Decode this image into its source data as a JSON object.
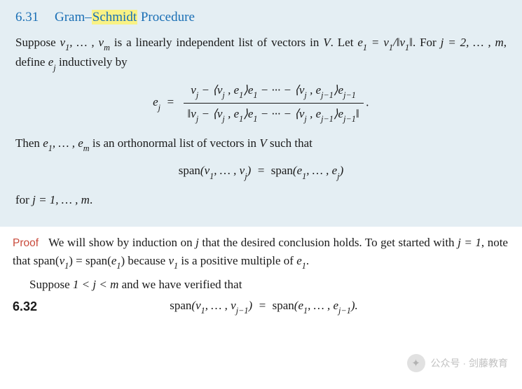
{
  "theorem": {
    "number": "6.31",
    "title_pre": "Gram–",
    "title_hl": "Schmidt",
    "title_post": " Procedure",
    "para1_a": "Suppose ",
    "para1_b": " is a linearly independent list of vectors in ",
    "para1_c": ".  Let ",
    "para1_d": ". For ",
    "para1_e": ", define ",
    "para1_f": " inductively by",
    "list_v": "v₁, … , vₘ",
    "space_V": "V",
    "e1_def": "e₁ = v₁ / ‖v₁‖",
    "j_range": "j = 2, … , m",
    "ej_sym": "eⱼ",
    "formula_lhs": "eⱼ  =  ",
    "formula_num": "vⱼ − ⟨vⱼ , e₁⟩e₁ − ··· − ⟨vⱼ , eⱼ₋₁⟩eⱼ₋₁",
    "formula_den": "‖vⱼ − ⟨vⱼ , e₁⟩e₁ − ··· − ⟨vⱼ , eⱼ₋₁⟩eⱼ₋₁‖",
    "formula_end": ".",
    "then_a": "Then ",
    "then_list": "e₁, … , eₘ",
    "then_b": " is an orthonormal list of vectors in ",
    "then_c": " such that",
    "span_eq": "span(v₁, … , vⱼ)  =  span(e₁, … , eⱼ)",
    "for_a": "for ",
    "for_range": "j = 1, … , m",
    "for_end": "."
  },
  "proof": {
    "label": "Proof",
    "p1_a": "We will show by induction on ",
    "p1_j": "j",
    "p1_b": " that the desired conclusion holds. To get started with ",
    "p1_c": "j = 1",
    "p1_d": ", note that span(",
    "p1_v1": "v₁",
    "p1_e": ") = span(",
    "p1_e1": "e₁",
    "p1_f": ") because ",
    "p1_g": " is a positive multiple of ",
    "p1_h": ".",
    "p2_a": "Suppose ",
    "p2_b": "1 < j < m",
    "p2_c": " and we have verified that",
    "eq_num": "6.32",
    "eq_body": "span(v₁, … , vⱼ₋₁)  =  span(e₁, … , eⱼ₋₁)."
  },
  "watermark": {
    "text": "公众号 · 剑藤教育"
  },
  "colors": {
    "box_bg": "#e4eef3",
    "title_blue": "#1a6fb5",
    "highlight": "#f9f285",
    "proof_red": "#c94a3b",
    "watermark_gray": "#b6b6b6"
  }
}
